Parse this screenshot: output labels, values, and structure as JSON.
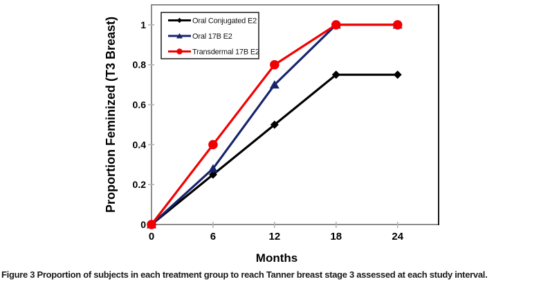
{
  "figure": {
    "caption_label": "Figure 3",
    "caption_text": "Proportion of subjects in each treatment group to reach Tanner breast stage 3 assessed at each study interval."
  },
  "chart_data": {
    "type": "line",
    "title": "",
    "xlabel": "Months",
    "ylabel": "Proportion Feminized (T3 Breast)",
    "x": [
      0,
      6,
      12,
      18,
      24
    ],
    "x_tick_labels": [
      "0",
      "6",
      "12",
      "18",
      "24"
    ],
    "y_tick_values": [
      0,
      0.2,
      0.4,
      0.6,
      0.8,
      1
    ],
    "y_tick_labels": [
      "0",
      "0.2",
      "0.4",
      "0.6",
      "0.8",
      "1"
    ],
    "xlim": [
      0,
      28
    ],
    "ylim": [
      0,
      1.1
    ],
    "grid": false,
    "legend_position": "top-left-inside",
    "series": [
      {
        "name": "Oral Conjugated E2",
        "color": "#000000",
        "marker": "diamond",
        "values": [
          0,
          0.25,
          0.5,
          0.75,
          0.75
        ]
      },
      {
        "name": "Oral 17B E2",
        "color": "#17246C",
        "marker": "triangle",
        "values": [
          0,
          0.28,
          0.7,
          1,
          1
        ]
      },
      {
        "name": "Transdermal 17B E2",
        "color": "#F20000",
        "marker": "circle",
        "values": [
          0,
          0.4,
          0.8,
          1,
          1
        ]
      }
    ],
    "colors": {
      "plot_border": "#8C8C8C",
      "plot_border_right": "#141414",
      "tick": "#B3B3B3",
      "text": "#000000",
      "legend_border": "#1A1A1A",
      "background": "#FFFFFF"
    }
  }
}
